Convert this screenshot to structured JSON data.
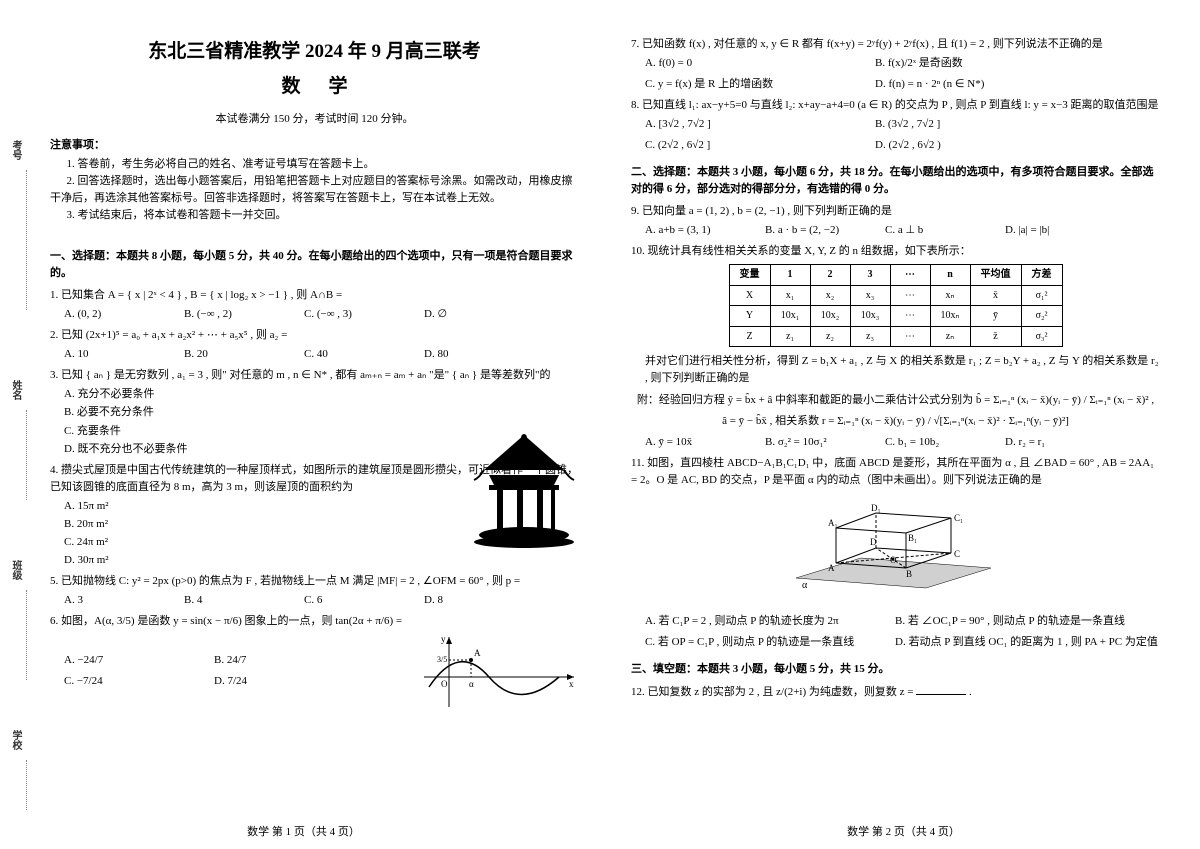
{
  "margins": {
    "t1": "考号",
    "t2": "姓名",
    "t3": "班级",
    "t4": "学校"
  },
  "h1": "东北三省精准教学 2024 年 9 月高三联考",
  "h2": "数学",
  "meta": "本试卷满分 150 分，考试时间 120 分钟。",
  "notice_h": "注意事项：",
  "notice_1": "1. 答卷前，考生务必将自己的姓名、准考证号填写在答题卡上。",
  "notice_2": "2. 回答选择题时，选出每小题答案后，用铅笔把答题卡上对应题目的答案标号涂黑。如需改动，用橡皮擦干净后，再选涂其他答案标号。回答非选择题时，将答案写在答题卡上，写在本试卷上无效。",
  "notice_3": "3. 考试结束后，将本试卷和答题卡一并交回。",
  "sec1": "一、选择题：本题共 8 小题，每小题 5 分，共 40 分。在每小题给出的四个选项中，只有一项是符合题目要求的。",
  "q1": {
    "stem": "1. 已知集合 A = { x | 2ˣ < 4 } , B = { x | log₂ x > −1 } , 则 A∩B =",
    "A": "A. (0, 2)",
    "B": "B. (−∞ , 2)",
    "C": "C. (−∞ , 3)",
    "D": "D. ∅"
  },
  "q2": {
    "stem": "2. 已知 (2x+1)⁵ = a₀ + a₁x + a₂x² + ⋯ + a₅x⁵ , 则 a₂ =",
    "A": "A. 10",
    "B": "B. 20",
    "C": "C. 40",
    "D": "D. 80"
  },
  "q3": {
    "stem": "3. 已知 { aₙ } 是无穷数列 , a₁ = 3 , 则\" 对任意的 m , n ∈ N* , 都有 aₘ₊ₙ = aₘ + aₙ \"是\" { aₙ } 是等差数列\"的",
    "A": "A. 充分不必要条件",
    "B": "B. 必要不充分条件",
    "C": "C. 充要条件",
    "D": "D. 既不充分也不必要条件"
  },
  "q4": {
    "stem": "4. 攒尖式屋顶是中国古代传统建筑的一种屋顶样式，如图所示的建筑屋顶是圆形攒尖，可近似看作一个圆锥，已知该圆锥的底面直径为 8 m，高为 3 m，则该屋顶的面积约为",
    "A": "A. 15π m²",
    "B": "B. 20π m²",
    "C": "C. 24π m²",
    "D": "D. 30π m²"
  },
  "q5": {
    "stem": "5. 已知抛物线 C: y² = 2px (p>0) 的焦点为 F , 若抛物线上一点 M 满足 |MF| = 2 , ∠OFM = 60° , 则 p =",
    "A": "A. 3",
    "B": "B. 4",
    "C": "C. 6",
    "D": "D. 8"
  },
  "q6": {
    "stem": "6. 如图，A(α, 3/5) 是函数 y = sin(x − π/6) 图象上的一点，则 tan(2α + π/6) =",
    "A": "A. −24/7",
    "B": "B. 24/7",
    "C": "C. −7/24",
    "D": "D. 7/24"
  },
  "q7": {
    "stem": "7. 已知函数 f(x) , 对任意的 x, y ∈ R 都有 f(x+y) = 2ʸf(y) + 2ʸf(x) , 且 f(1) = 2 , 则下列说法不正确的是",
    "A": "A. f(0) = 0",
    "B": "B. f(x)/2ˣ 是奇函数",
    "C": "C. y = f(x) 是 R 上的增函数",
    "D": "D. f(n) = n · 2ⁿ (n ∈ N*)"
  },
  "q8": {
    "stem": "8. 已知直线 l₁: ax−y+5=0 与直线 l₂: x+ay−a+4=0 (a ∈ R) 的交点为 P , 则点 P 到直线 l: y = x−3 距离的取值范围是",
    "A": "A. [3√2 , 7√2 ]",
    "B": "B. (3√2 , 7√2 ]",
    "C": "C. (2√2 , 6√2 ]",
    "D": "D. (2√2 , 6√2 )"
  },
  "sec2": "二、选择题：本题共 3 小题，每小题 6 分，共 18 分。在每小题给出的选项中，有多项符合题目要求。全部选对的得 6 分，部分选对的得部分分，有选错的得 0 分。",
  "q9": {
    "stem": "9. 已知向量 a = (1, 2) , b = (2, −1) , 则下列判断正确的是",
    "A": "A. a+b = (3, 1)",
    "B": "B. a · b = (2, −2)",
    "C": "C. a ⊥ b",
    "D": "D. |a| = |b|"
  },
  "q10": {
    "stem": "10. 现统计具有线性相关关系的变量 X, Y, Z 的 n 组数据，如下表所示：",
    "post": "并对它们进行相关性分析，得到 Z = b₁X + a₁ , Z 与 X 的相关系数是 r₁ ; Z = b₂Y + a₂ , Z 与 Y 的相关系数是 r₂ , 则下列判断正确的是",
    "attach": "附：经验回归方程 ŷ = b̂x + â 中斜率和截距的最小二乘估计公式分别为 b̂ =",
    "formula1": "Σᵢ₌₁ⁿ (xᵢ − x̄)(yᵢ − ȳ) / Σᵢ₌₁ⁿ (xᵢ − x̄)² ,",
    "formula2": "â = ȳ − b̂x̄ , 相关系数 r = Σᵢ₌₁ⁿ (xᵢ − x̄)(yᵢ − ȳ) / √[Σᵢ₌₁ⁿ(xᵢ − x̄)² · Σᵢ₌₁ⁿ(yᵢ − ȳ)²]",
    "A": "A. ȳ = 10x̄",
    "B": "B. σ₂² = 10σ₁²",
    "C": "C. b₁ = 10b₂",
    "D": "D. r₂ = r₁",
    "table": {
      "headers": [
        "变量",
        "1",
        "2",
        "3",
        "⋯",
        "n",
        "平均值",
        "方差"
      ],
      "rows": [
        [
          "X",
          "x₁",
          "x₂",
          "x₃",
          "⋯",
          "xₙ",
          "x̄",
          "σ₁²"
        ],
        [
          "Y",
          "10x₁",
          "10x₂",
          "10x₃",
          "⋯",
          "10xₙ",
          "ȳ",
          "σ₂²"
        ],
        [
          "Z",
          "z₁",
          "z₂",
          "z₃",
          "⋯",
          "zₙ",
          "z̄",
          "σ₃²"
        ]
      ]
    }
  },
  "q11": {
    "stem": "11. 如图，直四棱柱 ABCD−A₁B₁C₁D₁ 中，底面 ABCD 是菱形，其所在平面为 α , 且 ∠BAD = 60° , AB = 2AA₁ = 2。O 是 AC, BD 的交点，P 是平面 α 内的动点（图中未画出）。则下列说法正确的是",
    "A": "A. 若 C₁P = 2 , 则动点 P 的轨迹长度为 2π",
    "B": "B. 若 ∠OC₁P = 90° , 则动点 P 的轨迹是一条直线",
    "C": "C. 若 OP = C₁P , 则动点 P 的轨迹是一条直线",
    "D": "D. 若动点 P 到直线 OC₁ 的距离为 1 , 则 PA + PC 为定值"
  },
  "sec3": "三、填空题：本题共 3 小题，每小题 5 分，共 15 分。",
  "q12": {
    "stem": "12. 已知复数 z 的实部为 2 , 且 z/(2+i) 为纯虚数，则复数 z = ",
    "blank": "______"
  },
  "footer1": "数学  第 1 页（共 4 页）",
  "footer2": "数学  第 2 页（共 4 页）"
}
